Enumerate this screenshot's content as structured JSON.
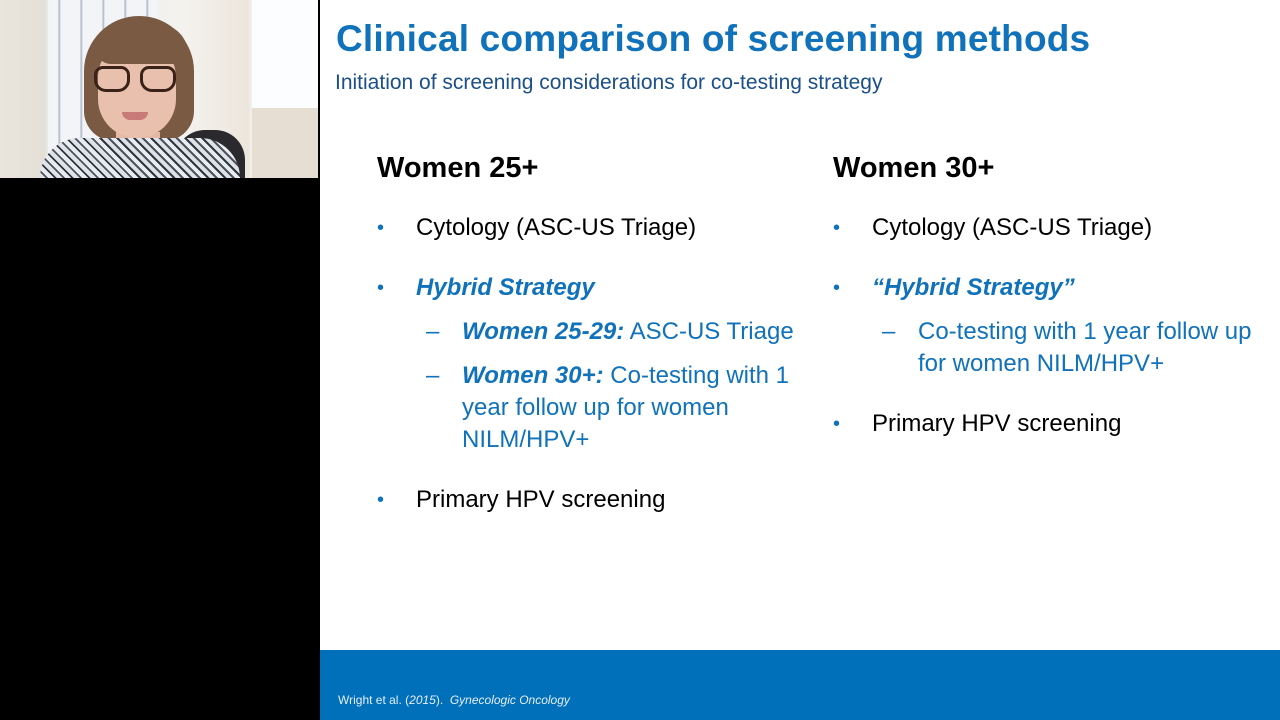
{
  "presenter": {
    "video_label": "presenter-webcam"
  },
  "slide": {
    "title": "Clinical comparison of screening methods",
    "subtitle": "Initiation of screening considerations for co-testing strategy",
    "colors": {
      "accent_blue": "#1072ba",
      "footer_blue": "#0070ba",
      "subtitle_blue": "#1a4f8a",
      "body_text": "#000000"
    },
    "columns": [
      {
        "heading": "Women 25+",
        "items": [
          {
            "bullet": "•",
            "label": "Cytology (ASC-US Triage)"
          },
          {
            "bullet": "•",
            "label": "Hybrid Strategy",
            "sub_items": [
              {
                "dash": "–",
                "lead": "Women 25-29:",
                "text": " ASC-US Triage"
              },
              {
                "dash": "–",
                "lead": "Women 30+:",
                "text": " Co-testing with 1 year follow up for women NILM/HPV+"
              }
            ]
          },
          {
            "bullet": "•",
            "label": "Primary HPV screening"
          }
        ]
      },
      {
        "heading": "Women 30+",
        "items": [
          {
            "bullet": "•",
            "label": "Cytology (ASC-US Triage)"
          },
          {
            "bullet": "•",
            "label": "“Hybrid Strategy”",
            "sub_items": [
              {
                "dash": "–",
                "lead": "",
                "text": "Co-testing with 1 year follow up for women NILM/HPV+"
              }
            ]
          },
          {
            "bullet": "•",
            "label": "Primary HPV screening"
          }
        ]
      }
    ],
    "footer": {
      "citation_author": "Wright et al. (",
      "citation_year": "2015",
      "citation_close": ").  ",
      "citation_journal": "Gynecologic Oncology"
    }
  }
}
